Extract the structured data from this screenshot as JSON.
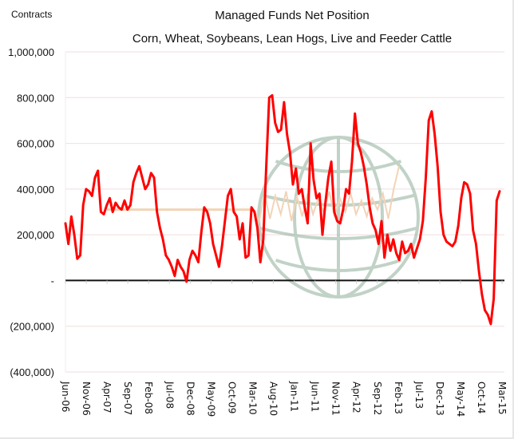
{
  "chart_data": {
    "type": "line",
    "title": "Managed Funds Net Position",
    "subtitle": "Corn, Wheat, Soybeans, Lean Hogs, Live and Feeder Cattle",
    "ylabel": "Contracts",
    "xlabel": "",
    "ylim": [
      -400000,
      1000000
    ],
    "yticks": [
      1000000,
      800000,
      600000,
      400000,
      200000,
      0,
      -200000,
      -400000
    ],
    "ytick_labels": [
      "1,000,000",
      "800,000",
      "600,000",
      "400,000",
      "200,000",
      "-",
      "(200,000)",
      "(400,000)"
    ],
    "xtick_labels": [
      "Jun-06",
      "Nov-06",
      "Apr-07",
      "Sep-07",
      "Feb-08",
      "Jul-08",
      "Dec-08",
      "May-09",
      "Oct-09",
      "Mar-10",
      "Aug-10",
      "Jan-11",
      "Jun-11",
      "Nov-11",
      "Apr-12",
      "Sep-12",
      "Feb-13",
      "Jul-13",
      "Dec-13",
      "May-14",
      "Oct-14",
      "Mar-15"
    ],
    "grid": true,
    "zero_line": true,
    "legend": "none",
    "x_start": "Jun-06",
    "x_step": "1 month",
    "series": [
      {
        "name": "Managed Funds Net Position",
        "color": "#ff0000",
        "values": [
          250000,
          160000,
          280000,
          200000,
          95000,
          110000,
          330000,
          400000,
          390000,
          370000,
          450000,
          480000,
          300000,
          290000,
          330000,
          360000,
          300000,
          340000,
          320000,
          310000,
          350000,
          310000,
          330000,
          430000,
          470000,
          500000,
          450000,
          400000,
          420000,
          470000,
          450000,
          300000,
          230000,
          180000,
          110000,
          90000,
          60000,
          20000,
          90000,
          60000,
          40000,
          -5000,
          90000,
          130000,
          110000,
          80000,
          210000,
          320000,
          300000,
          250000,
          160000,
          110000,
          60000,
          150000,
          260000,
          370000,
          400000,
          300000,
          280000,
          180000,
          250000,
          100000,
          110000,
          320000,
          300000,
          230000,
          80000,
          180000,
          500000,
          800000,
          810000,
          690000,
          650000,
          660000,
          780000,
          640000,
          560000,
          420000,
          490000,
          380000,
          400000,
          320000,
          250000,
          600000,
          440000,
          360000,
          380000,
          200000,
          340000,
          450000,
          520000,
          300000,
          260000,
          250000,
          310000,
          400000,
          380000,
          520000,
          730000,
          600000,
          560000,
          500000,
          420000,
          320000,
          250000,
          220000,
          160000,
          260000,
          100000,
          200000,
          130000,
          180000,
          120000,
          90000,
          170000,
          120000,
          130000,
          160000,
          100000,
          140000,
          180000,
          260000,
          450000,
          700000,
          740000,
          640000,
          500000,
          300000,
          200000,
          170000,
          160000,
          150000,
          170000,
          240000,
          360000,
          430000,
          420000,
          380000,
          220000,
          160000,
          40000,
          -60000,
          -130000,
          -150000,
          -190000,
          -80000,
          350000,
          390000
        ]
      }
    ],
    "overlay_series": [
      {
        "name": "watermark-faint-series",
        "color": "#f2d4b8",
        "values_note": "faint background line",
        "flat_segments": [
          {
            "from": "Apr-07",
            "to": "Mar-10",
            "value": 310000
          }
        ],
        "zigzag": [
          310000,
          260000,
          380000,
          270000,
          370000,
          290000,
          390000,
          260000,
          370000,
          280000,
          380000,
          290000,
          360000,
          300000,
          390000,
          280000,
          360000,
          300000,
          380000,
          290000,
          350000,
          280000,
          360000,
          310000,
          380000,
          270000,
          400000,
          500000
        ]
      }
    ],
    "watermark": "globe"
  }
}
